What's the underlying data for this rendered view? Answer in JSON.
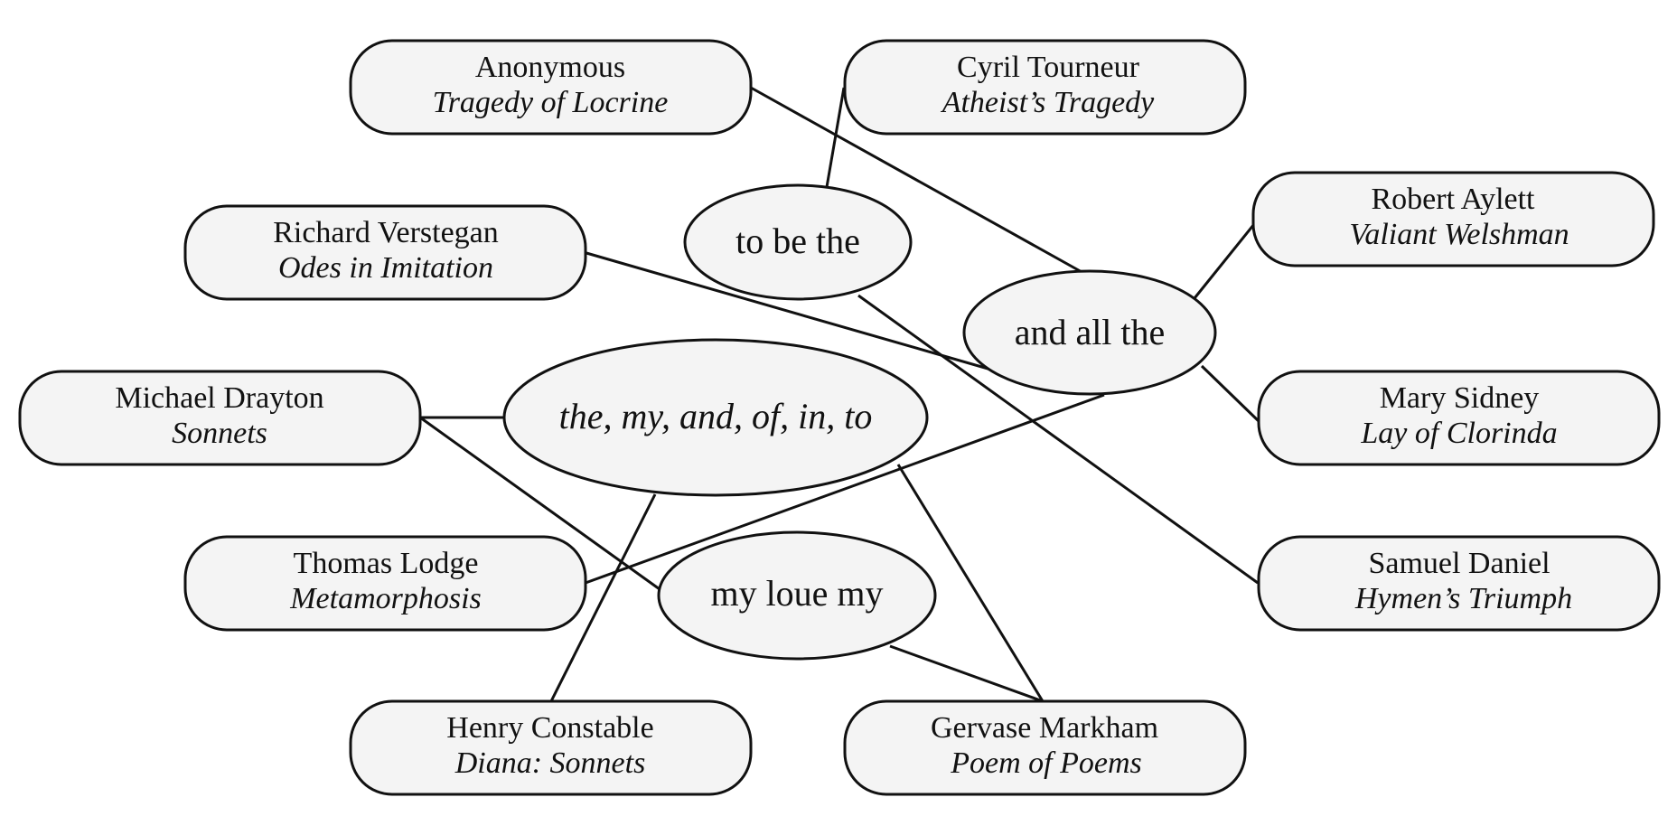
{
  "authors": {
    "anonymous": {
      "name": "Anonymous",
      "work": "Tragedy of Locrine"
    },
    "tourneur": {
      "name": "Cyril Tourneur",
      "work": "Atheist’s Tragedy"
    },
    "aylett": {
      "name": "Robert Aylett",
      "work": "Valiant Welshman"
    },
    "verstegan": {
      "name": "Richard Verstegan",
      "work": "Odes in Imitation"
    },
    "sidney": {
      "name": "Mary Sidney",
      "work": "Lay of Clorinda"
    },
    "drayton": {
      "name": "Michael Drayton",
      "work": "Sonnets"
    },
    "lodge": {
      "name": "Thomas Lodge",
      "work": "Metamorphosis"
    },
    "daniel": {
      "name": "Samuel Daniel",
      "work": "Hymen’s Triumph"
    },
    "constable": {
      "name": "Henry Constable",
      "work": "Diana: Sonnets"
    },
    "markham": {
      "name": "Gervase Markham",
      "work": "Poem of Poems"
    }
  },
  "phrases": {
    "tobethe": "to be the",
    "andallthe": "and all the",
    "themyand": "the, my, and, of, in, to",
    "myloue": "my loue my"
  },
  "edges": [
    [
      "anonymous",
      "andallthe"
    ],
    [
      "tourneur",
      "tobethe"
    ],
    [
      "tobethe",
      "daniel"
    ],
    [
      "aylett",
      "andallthe"
    ],
    [
      "verstegan",
      "andallthe"
    ],
    [
      "sidney",
      "andallthe"
    ],
    [
      "lodge",
      "andallthe"
    ],
    [
      "drayton",
      "themyand"
    ],
    [
      "drayton",
      "myloue"
    ],
    [
      "themyand",
      "constable"
    ],
    [
      "themyand",
      "markham"
    ],
    [
      "myloue",
      "markham"
    ]
  ]
}
